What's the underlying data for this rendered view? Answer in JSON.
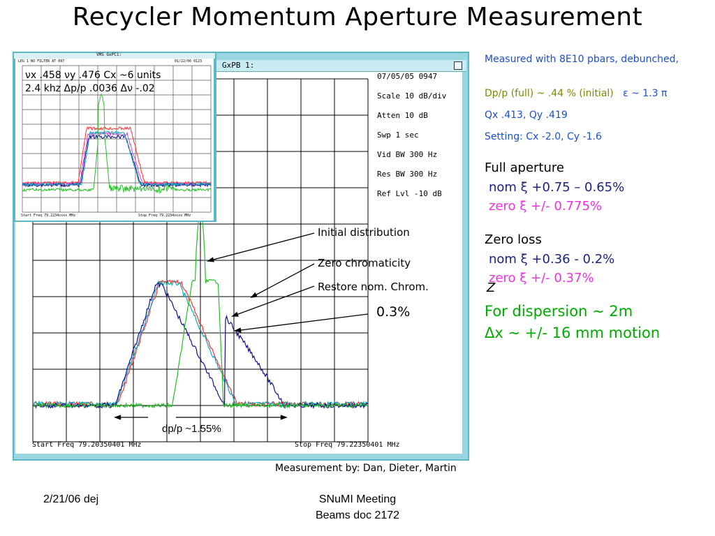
{
  "slide": {
    "title": "Recycler Momentum Aperture Measurement",
    "footer_date": "2/21/06  dej",
    "footer_meeting": "SNuMI Meeting",
    "footer_doc": "Beams doc 2172",
    "measured_by": "Measurement by: Dan, Dieter, Martin"
  },
  "analyzer": {
    "window_title": "GxPB 1:",
    "date": "07/05/05  0947",
    "scale": "Scale 10 dB/div",
    "atten": "Atten 10 dB",
    "swp": "Swp 1      sec",
    "vid_bw": "Vid BW  300 Hz",
    "res_bw": "Res BW  300 Hz",
    "ref_lvl": "Ref Lvl -10    dB",
    "start_freq": "Start Freq 79.20350401 MHz",
    "stop_freq": "Stop Freq 79.22350401 MHz",
    "dp_label": "dp/p ~1.55%"
  },
  "inset": {
    "title": "VMS GxPC1:",
    "header_left": "LEG 1 NO FILTER AT 097",
    "header_right": "01/22/06  0123",
    "line1": "νx .458 νy .476 Cx ~6 units",
    "line2": "2.4 khz  Δp/p .0036 Δν -.02",
    "start": "Start Freq 79.2234xxxx MHz",
    "stop": "Stop Freq 79.2234xxxx MHz"
  },
  "annotations": {
    "initial": "Initial distribution",
    "zero_chrom": "Zero chromaticity",
    "restore": "Restore nom. Chrom.",
    "pct": "0.3%"
  },
  "notes": {
    "measured": "Measured with 8E10 pbars, debunched,",
    "dpp": "Dp/p (full) ~ .44 % (initial)",
    "eps": "ε ~ 1.3 π",
    "q": "Qx .413, Qy .419",
    "setting": "Setting:  Cx  -2.0, Cy  -1.6",
    "full_aperture": "Full aperture",
    "full_nom": "nom ξ  +0.75 – 0.65%",
    "full_zero": "zero ξ  +/- 0.775%",
    "zero_loss": "Zero loss",
    "zl_nom": "nom ξ   +0.36 - 0.2%",
    "zl_zero": "zero ξ   +/- 0.37%",
    "z": "Z",
    "dispersion": "For dispersion ~ 2m",
    "motion": "Δx ~ +/- 16 mm motion"
  },
  "colors": {
    "blue_text": "#1a4fd0",
    "olive_text": "#7a8a00",
    "magenta_text": "#ee33dd",
    "green_text": "#00aa00",
    "navy_text": "#1a237e",
    "trace_green": "#22c022",
    "trace_red": "#ff3030",
    "trace_cyan": "#10a8b8",
    "trace_navy": "#101090",
    "trace_magenta": "#e040e0"
  }
}
